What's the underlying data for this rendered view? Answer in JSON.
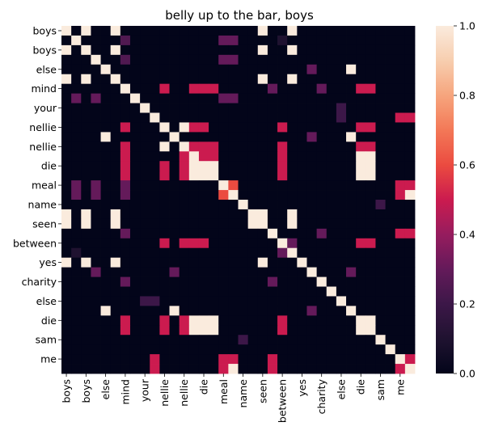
{
  "chart_data": {
    "type": "heatmap",
    "title": "belly up to the bar, boys",
    "labels": [
      "boys",
      "boys",
      "boys",
      "boys",
      "else",
      "else",
      "mind",
      "mind",
      "your",
      "your",
      "nellie",
      "nellie",
      "nellie",
      "nellie",
      "die",
      "die",
      "meal",
      "meal",
      "name",
      "name",
      "seen",
      "seen",
      "between",
      "between",
      "yes",
      "yes",
      "charity",
      "charity",
      "else",
      "else",
      "die",
      "die",
      "sam",
      "sam",
      "me",
      "me"
    ],
    "y_ticks": [
      "boys",
      "boys",
      "else",
      "mind",
      "your",
      "nellie",
      "nellie",
      "die",
      "meal",
      "name",
      "seen",
      "between",
      "yes",
      "charity",
      "else",
      "die",
      "sam",
      "me"
    ],
    "x_ticks": [
      "boys",
      "boys",
      "else",
      "mind",
      "your",
      "nellie",
      "nellie",
      "die",
      "meal",
      "name",
      "seen",
      "between",
      "yes",
      "charity",
      "else",
      "die",
      "sam",
      "me"
    ],
    "colorbar": {
      "min": 0.0,
      "max": 1.0,
      "ticks": [
        "0.0",
        "0.2",
        "0.4",
        "0.6",
        "0.8",
        "1.0"
      ]
    },
    "matrix": [
      [
        1,
        0,
        1,
        0,
        0,
        1,
        0,
        0,
        0,
        0,
        0,
        0,
        0,
        0,
        0,
        0,
        0,
        0,
        0,
        0,
        1,
        0,
        0,
        1,
        0,
        0,
        0,
        0,
        0,
        0,
        0,
        0,
        0,
        0,
        0,
        0
      ],
      [
        0,
        1,
        0,
        0,
        0,
        0,
        0.25,
        0,
        0,
        0,
        0,
        0,
        0,
        0,
        0,
        0,
        0.3,
        0.3,
        0,
        0,
        0,
        0,
        0.1,
        0,
        0,
        0,
        0,
        0,
        0,
        0,
        0,
        0,
        0,
        0,
        0,
        0
      ],
      [
        1,
        0,
        1,
        0,
        0,
        1,
        0,
        0,
        0,
        0,
        0,
        0,
        0,
        0,
        0,
        0,
        0,
        0,
        0,
        0,
        1,
        0,
        0,
        1,
        0,
        0,
        0,
        0,
        0,
        0,
        0,
        0,
        0,
        0,
        0,
        0
      ],
      [
        0,
        0,
        0,
        1,
        0,
        0,
        0.25,
        0,
        0,
        0,
        0,
        0,
        0,
        0,
        0,
        0,
        0.3,
        0.3,
        0,
        0,
        0,
        0,
        0,
        0,
        0,
        0,
        0,
        0,
        0,
        0,
        0,
        0,
        0,
        0,
        0,
        0
      ],
      [
        0,
        0,
        0,
        0,
        1,
        0,
        0,
        0,
        0,
        0,
        0,
        0,
        0,
        0,
        0,
        0,
        0,
        0,
        0,
        0,
        0,
        0,
        0,
        0,
        0,
        0.3,
        0,
        0,
        0,
        1,
        0,
        0,
        0,
        0,
        0,
        0
      ],
      [
        1,
        0,
        1,
        0,
        0,
        1,
        0,
        0,
        0,
        0,
        0,
        0,
        0,
        0,
        0,
        0,
        0,
        0,
        0,
        0,
        1,
        0,
        0,
        1,
        0,
        0,
        0,
        0,
        0,
        0,
        0,
        0,
        0,
        0,
        0,
        0
      ],
      [
        0,
        0,
        0,
        0,
        0,
        0,
        1,
        0,
        0,
        0,
        0.5,
        0,
        0,
        0.5,
        0.5,
        0.5,
        0,
        0,
        0,
        0,
        0,
        0.3,
        0,
        0,
        0,
        0,
        0.3,
        0,
        0,
        0,
        0.5,
        0.5,
        0,
        0,
        0,
        0
      ],
      [
        0,
        0.3,
        0,
        0.3,
        0,
        0,
        0,
        1,
        0,
        0,
        0,
        0,
        0,
        0,
        0,
        0,
        0.3,
        0.3,
        0,
        0,
        0,
        0,
        0,
        0,
        0,
        0,
        0,
        0,
        0,
        0,
        0,
        0,
        0,
        0,
        0,
        0
      ],
      [
        0,
        0,
        0,
        0,
        0,
        0,
        0,
        0,
        1,
        0,
        0,
        0,
        0,
        0,
        0,
        0,
        0,
        0,
        0,
        0,
        0,
        0,
        0,
        0,
        0,
        0,
        0,
        0,
        0.2,
        0,
        0,
        0,
        0,
        0,
        0,
        0
      ],
      [
        0,
        0,
        0,
        0,
        0,
        0,
        0,
        0,
        0,
        1,
        0,
        0,
        0,
        0,
        0,
        0,
        0,
        0,
        0,
        0,
        0,
        0,
        0,
        0,
        0,
        0,
        0,
        0,
        0.2,
        0,
        0,
        0,
        0,
        0,
        0.5,
        0.5
      ],
      [
        0,
        0,
        0,
        0,
        0,
        0,
        0.5,
        0,
        0,
        0,
        1,
        0,
        1,
        0.5,
        0.5,
        0,
        0,
        0,
        0,
        0,
        0,
        0,
        0.5,
        0,
        0,
        0,
        0,
        0,
        0,
        0,
        0.5,
        0.5,
        0,
        0,
        0,
        0
      ],
      [
        0,
        0,
        0,
        0,
        1,
        0,
        0,
        0,
        0,
        0,
        0,
        1,
        0,
        0,
        0,
        0,
        0,
        0,
        0,
        0,
        0,
        0,
        0,
        0,
        0,
        0.3,
        0,
        0,
        0,
        1,
        0,
        0,
        0,
        0,
        0,
        0
      ],
      [
        0,
        0,
        0,
        0,
        0,
        0,
        0.5,
        0,
        0,
        0,
        1,
        0,
        1,
        0.5,
        0.5,
        0.5,
        0,
        0,
        0,
        0,
        0,
        0,
        0.5,
        0,
        0,
        0,
        0,
        0,
        0,
        0,
        0.5,
        0.5,
        0,
        0,
        0,
        0
      ],
      [
        0,
        0,
        0,
        0,
        0,
        0,
        0.5,
        0,
        0,
        0,
        0,
        0,
        0.5,
        1,
        0.5,
        0.5,
        0,
        0,
        0,
        0,
        0,
        0,
        0.5,
        0,
        0,
        0,
        0,
        0,
        0,
        0,
        1,
        1,
        0,
        0,
        0,
        0
      ],
      [
        0,
        0,
        0,
        0,
        0,
        0,
        0.5,
        0,
        0,
        0,
        0.5,
        0,
        0.5,
        1,
        1,
        1,
        0,
        0,
        0,
        0,
        0,
        0,
        0.5,
        0,
        0,
        0,
        0,
        0,
        0,
        0,
        1,
        1,
        0,
        0,
        0,
        0
      ],
      [
        0,
        0,
        0,
        0,
        0,
        0,
        0.5,
        0,
        0,
        0,
        0.5,
        0,
        0.5,
        1,
        1,
        1,
        0,
        0,
        0,
        0,
        0,
        0,
        0.5,
        0,
        0,
        0,
        0,
        0,
        0,
        0,
        1,
        1,
        0,
        0,
        0,
        0
      ],
      [
        0,
        0.3,
        0,
        0.3,
        0,
        0,
        0.3,
        0,
        0,
        0,
        0,
        0,
        0,
        0,
        0,
        0,
        1,
        0.6,
        0,
        0,
        0,
        0,
        0,
        0,
        0,
        0,
        0,
        0,
        0,
        0,
        0,
        0,
        0,
        0,
        0.5,
        0.5
      ],
      [
        0,
        0.3,
        0,
        0.3,
        0,
        0,
        0.3,
        0,
        0,
        0,
        0,
        0,
        0,
        0,
        0,
        0,
        0.6,
        1,
        0,
        0,
        0,
        0,
        0,
        0,
        0,
        0,
        0,
        0,
        0,
        0,
        0,
        0,
        0,
        0,
        0.5,
        1
      ],
      [
        0,
        0,
        0,
        0,
        0,
        0,
        0,
        0,
        0,
        0,
        0,
        0,
        0,
        0,
        0,
        0,
        0,
        0,
        1,
        0,
        0,
        0,
        0,
        0,
        0,
        0,
        0,
        0,
        0,
        0,
        0,
        0,
        0.2,
        0,
        0,
        0
      ],
      [
        1,
        0,
        1,
        0,
        0,
        1,
        0,
        0,
        0,
        0,
        0,
        0,
        0,
        0,
        0,
        0,
        0,
        0,
        0,
        1,
        1,
        0,
        0,
        1,
        0,
        0,
        0,
        0,
        0,
        0,
        0,
        0,
        0,
        0,
        0,
        0
      ],
      [
        1,
        0,
        1,
        0,
        0,
        1,
        0,
        0,
        0,
        0,
        0,
        0,
        0,
        0,
        0,
        0,
        0,
        0,
        0,
        1,
        1,
        0,
        0,
        1,
        0,
        0,
        0,
        0,
        0,
        0,
        0,
        0,
        0,
        0,
        0,
        0
      ],
      [
        0,
        0,
        0,
        0,
        0,
        0,
        0.3,
        0,
        0,
        0,
        0,
        0,
        0,
        0,
        0,
        0,
        0,
        0,
        0,
        0,
        0,
        1,
        0,
        0,
        0,
        0,
        0.3,
        0,
        0,
        0,
        0,
        0,
        0,
        0,
        0.5,
        0.5
      ],
      [
        0,
        0,
        0,
        0,
        0,
        0,
        0,
        0,
        0,
        0,
        0.5,
        0,
        0.5,
        0.5,
        0.5,
        0,
        0,
        0,
        0,
        0,
        0,
        0,
        1,
        0.3,
        0,
        0,
        0,
        0,
        0,
        0,
        0.5,
        0.5,
        0,
        0,
        0,
        0
      ],
      [
        0,
        0.1,
        0,
        0,
        0,
        0,
        0,
        0,
        0,
        0,
        0,
        0,
        0,
        0,
        0,
        0,
        0,
        0,
        0,
        0,
        0,
        0,
        0.3,
        1,
        0,
        0,
        0,
        0,
        0,
        0,
        0,
        0,
        0,
        0,
        0,
        0
      ],
      [
        1,
        0,
        1,
        0,
        0,
        1,
        0,
        0,
        0,
        0,
        0,
        0,
        0,
        0,
        0,
        0,
        0,
        0,
        0,
        0,
        1,
        0,
        0,
        0,
        1,
        0,
        0,
        0,
        0,
        0,
        0,
        0,
        0,
        0,
        0,
        0
      ],
      [
        0,
        0,
        0,
        0.3,
        0,
        0,
        0,
        0,
        0,
        0,
        0,
        0.3,
        0,
        0,
        0,
        0,
        0,
        0,
        0,
        0,
        0,
        0,
        0,
        0,
        0,
        1,
        0,
        0,
        0,
        0.3,
        0,
        0,
        0,
        0,
        0,
        0
      ],
      [
        0,
        0,
        0,
        0,
        0,
        0,
        0.3,
        0,
        0,
        0,
        0,
        0,
        0,
        0,
        0,
        0,
        0,
        0,
        0,
        0,
        0,
        0.3,
        0,
        0,
        0,
        0,
        1,
        0,
        0,
        0,
        0,
        0,
        0,
        0,
        0,
        0
      ],
      [
        0,
        0,
        0,
        0,
        0,
        0,
        0,
        0,
        0,
        0,
        0,
        0,
        0,
        0,
        0,
        0,
        0,
        0,
        0,
        0,
        0,
        0,
        0,
        0,
        0,
        0,
        0,
        1,
        0,
        0,
        0,
        0,
        0,
        0,
        0,
        0
      ],
      [
        0,
        0,
        0,
        0,
        0,
        0,
        0,
        0,
        0.2,
        0.2,
        0,
        0,
        0,
        0,
        0,
        0,
        0,
        0,
        0,
        0,
        0,
        0,
        0,
        0,
        0,
        0,
        0,
        0,
        1,
        0,
        0,
        0,
        0,
        0,
        0,
        0
      ],
      [
        0,
        0,
        0,
        0,
        1,
        0,
        0,
        0,
        0,
        0,
        0,
        1,
        0,
        0,
        0,
        0,
        0,
        0,
        0,
        0,
        0,
        0,
        0,
        0,
        0,
        0.3,
        0,
        0,
        0,
        1,
        0,
        0,
        0,
        0,
        0,
        0
      ],
      [
        0,
        0,
        0,
        0,
        0,
        0,
        0.5,
        0,
        0,
        0,
        0.5,
        0,
        0.5,
        1,
        1,
        1,
        0,
        0,
        0,
        0,
        0,
        0,
        0.5,
        0,
        0,
        0,
        0,
        0,
        0,
        0,
        1,
        1,
        0,
        0,
        0,
        0
      ],
      [
        0,
        0,
        0,
        0,
        0,
        0,
        0.5,
        0,
        0,
        0,
        0.5,
        0,
        0.5,
        1,
        1,
        1,
        0,
        0,
        0,
        0,
        0,
        0,
        0.5,
        0,
        0,
        0,
        0,
        0,
        0,
        0,
        1,
        1,
        0,
        0,
        0,
        0
      ],
      [
        0,
        0,
        0,
        0,
        0,
        0,
        0,
        0,
        0,
        0,
        0,
        0,
        0,
        0,
        0,
        0,
        0,
        0,
        0.2,
        0,
        0,
        0,
        0,
        0,
        0,
        0,
        0,
        0,
        0,
        0,
        0,
        0,
        1,
        0,
        0,
        0
      ],
      [
        0,
        0,
        0,
        0,
        0,
        0,
        0,
        0,
        0,
        0,
        0,
        0,
        0,
        0,
        0,
        0,
        0,
        0,
        0,
        0,
        0,
        0,
        0,
        0,
        0,
        0,
        0,
        0,
        0,
        0,
        0,
        0,
        0,
        1,
        0,
        0
      ],
      [
        0,
        0,
        0,
        0,
        0,
        0,
        0,
        0,
        0,
        0.5,
        0,
        0,
        0,
        0,
        0,
        0,
        0.5,
        0.5,
        0,
        0,
        0,
        0.5,
        0,
        0,
        0,
        0,
        0,
        0,
        0,
        0,
        0,
        0,
        0,
        0,
        1,
        0.5
      ],
      [
        0,
        0,
        0,
        0,
        0,
        0,
        0,
        0,
        0,
        0.5,
        0,
        0,
        0,
        0,
        0,
        0,
        0.5,
        1,
        0,
        0,
        0,
        0.5,
        0,
        0,
        0,
        0,
        0,
        0,
        0,
        0,
        0,
        0,
        0,
        0,
        0.5,
        1
      ]
    ]
  }
}
